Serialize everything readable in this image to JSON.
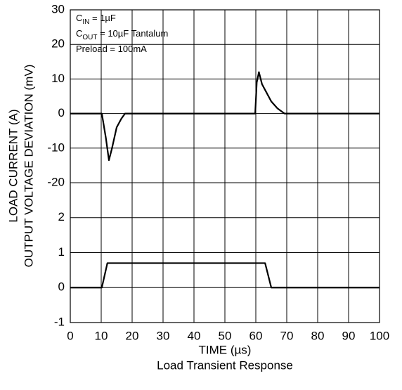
{
  "chart_data": [
    {
      "type": "line",
      "ylabel": "OUTPUT VOLTAGE DEVIATION (mV)",
      "annotations": [
        {
          "base": "C",
          "subscript": "IN",
          "text": " = 1µF"
        },
        {
          "base": "C",
          "subscript": "OUT",
          "text": " = 10µF Tantalum"
        },
        {
          "base": "Preload = 100mA"
        }
      ],
      "xlim": [
        0,
        100
      ],
      "ylim": [
        -20,
        30
      ],
      "yticks": [
        30,
        20,
        10,
        0,
        -10,
        -20
      ],
      "grid": true,
      "series": [
        {
          "color": "#000000",
          "x": [
            0,
            10.2,
            11.5,
            12.5,
            13.5,
            15,
            16.5,
            17.7,
            59.8,
            60.3,
            61,
            62,
            63.5,
            65,
            67,
            69.3,
            100
          ],
          "values": [
            0,
            0,
            -7,
            -13.5,
            -10,
            -4,
            -1.5,
            0,
            0,
            9,
            12,
            8.5,
            6,
            3.5,
            1.5,
            0,
            0
          ]
        }
      ]
    },
    {
      "type": "line",
      "ylabel": "LOAD CURRENT (A)",
      "xlabel": "TIME (µs)",
      "caption": "Load Transient Response",
      "xlim": [
        0,
        100
      ],
      "xticks": [
        0,
        10,
        20,
        30,
        40,
        50,
        60,
        70,
        80,
        90,
        100
      ],
      "ylim": [
        -1,
        3
      ],
      "yticks": [
        2,
        1,
        0,
        -1
      ],
      "grid": true,
      "series": [
        {
          "color": "#000000",
          "x": [
            0,
            10.2,
            12,
            63,
            65,
            100
          ],
          "values": [
            0,
            0,
            0.7,
            0.7,
            0,
            0
          ]
        }
      ]
    }
  ]
}
